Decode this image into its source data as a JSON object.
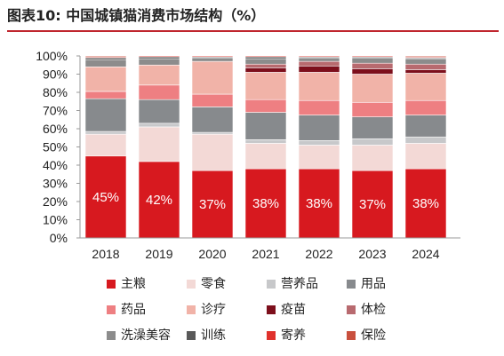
{
  "title": "图表10: 中国城镇猫消费市场结构（%）",
  "chart_data": {
    "type": "bar",
    "stacked": true,
    "categories": [
      "2018",
      "2019",
      "2020",
      "2021",
      "2022",
      "2023",
      "2024"
    ],
    "ylim": [
      0,
      100
    ],
    "yticks": [
      "0%",
      "10%",
      "20%",
      "30%",
      "40%",
      "50%",
      "60%",
      "70%",
      "80%",
      "90%",
      "100%"
    ],
    "grid": false,
    "legend_position": "bottom",
    "series": [
      {
        "name": "主粮",
        "color": "#d7191f",
        "values": [
          45,
          42,
          37,
          38,
          38,
          37,
          38
        ],
        "labels": [
          "45%",
          "42%",
          "37%",
          "38%",
          "38%",
          "37%",
          "38%"
        ]
      },
      {
        "name": "零食",
        "color": "#f3d9d6",
        "values": [
          12,
          19,
          20,
          14,
          13,
          14,
          14
        ]
      },
      {
        "name": "营养品",
        "color": "#c7c8ca",
        "values": [
          1.5,
          2,
          1,
          2,
          2.5,
          3.5,
          3.5
        ]
      },
      {
        "name": "用品",
        "color": "#878a8d",
        "values": [
          18,
          13,
          14,
          15,
          14,
          12,
          12
        ]
      },
      {
        "name": "药品",
        "color": "#ee7f82",
        "values": [
          4,
          8,
          7,
          7,
          8,
          8,
          8
        ]
      },
      {
        "name": "诊疗",
        "color": "#f1b3a8",
        "values": [
          13.5,
          11,
          18,
          15,
          15.5,
          15.5,
          15
        ]
      },
      {
        "name": "疫苗",
        "color": "#7d0f1c",
        "values": [
          0,
          0,
          0,
          2.5,
          3.5,
          3,
          2
        ]
      },
      {
        "name": "体检",
        "color": "#b86a6f",
        "values": [
          0,
          0,
          0,
          2,
          2.5,
          3,
          3
        ]
      },
      {
        "name": "洗澡美容",
        "color": "#8c8c8c",
        "values": [
          4,
          3.5,
          2,
          3,
          2,
          3,
          3
        ]
      },
      {
        "name": "训练",
        "color": "#595959",
        "values": [
          1,
          1,
          0.5,
          1,
          0.5,
          0.5,
          0.5
        ]
      },
      {
        "name": "寄养",
        "color": "#e0312c",
        "values": [
          0.5,
          0.5,
          0.5,
          0.5,
          0.5,
          0.5,
          0.5
        ]
      },
      {
        "name": "保险",
        "color": "#c9503e",
        "values": [
          0.5,
          0,
          0,
          0,
          0,
          0,
          0.5
        ]
      }
    ]
  }
}
